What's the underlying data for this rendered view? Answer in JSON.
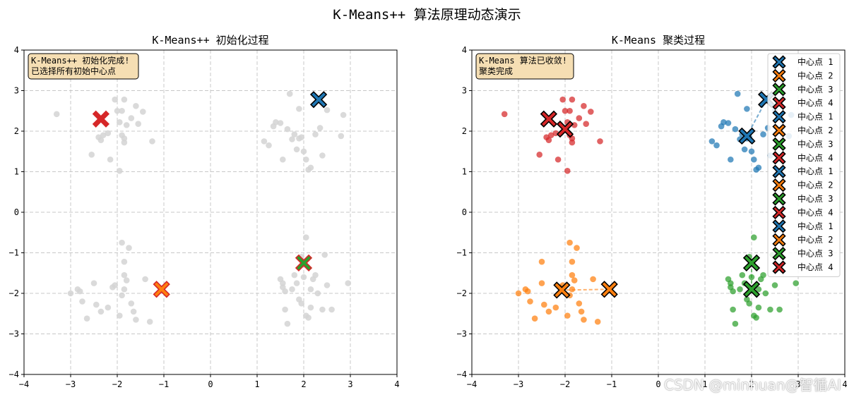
{
  "figure": {
    "title": "K-Means++ 算法原理动态演示"
  },
  "colors": {
    "c1": "#1f77b4",
    "c2": "#ff7f0e",
    "c3": "#2ca02c",
    "c4": "#d62728",
    "gray": "#d3d3d3",
    "grid": "#c8c8c8",
    "box_fill": "#f5deb3"
  },
  "watermark": "CSDN @minhuan@智循AI",
  "chart_data": [
    {
      "type": "scatter",
      "title": "K-Means++ 初始化过程",
      "xlim": [
        -4,
        4
      ],
      "ylim": [
        -4,
        4
      ],
      "xticks": [
        -4,
        -3,
        -2,
        -1,
        0,
        1,
        2,
        3,
        4
      ],
      "yticks": [
        -4,
        -3,
        -2,
        -1,
        0,
        1,
        2,
        3,
        4
      ],
      "grid": true,
      "annotation": [
        "K-Means++ 初始化完成!",
        "已选择所有初始中心点"
      ],
      "points_color": "gray",
      "points": [
        [
          -3.3,
          2.42
        ],
        [
          -2.55,
          1.42
        ],
        [
          -2.4,
          1.85
        ],
        [
          -2.3,
          1.9
        ],
        [
          -2.2,
          1.95
        ],
        [
          -2.15,
          1.3
        ],
        [
          -2.05,
          2.78
        ],
        [
          -2.0,
          2.5
        ],
        [
          -1.95,
          1.02
        ],
        [
          -1.9,
          2.5
        ],
        [
          -1.9,
          1.9
        ],
        [
          -1.85,
          2.78
        ],
        [
          -1.85,
          1.72
        ],
        [
          -1.8,
          2.15
        ],
        [
          -1.85,
          1.82
        ],
        [
          -1.7,
          2.32
        ],
        [
          -1.6,
          2.62
        ],
        [
          -1.55,
          2.18
        ],
        [
          -1.45,
          2.48
        ],
        [
          -1.25,
          1.75
        ],
        [
          -2.35,
          1.78
        ],
        [
          -1.95,
          2.22
        ],
        [
          1.15,
          1.75
        ],
        [
          1.25,
          1.65
        ],
        [
          1.35,
          2.12
        ],
        [
          1.4,
          2.22
        ],
        [
          1.5,
          2.2
        ],
        [
          1.55,
          1.3
        ],
        [
          1.65,
          2.05
        ],
        [
          1.7,
          2.92
        ],
        [
          1.75,
          1.8
        ],
        [
          1.8,
          1.92
        ],
        [
          1.85,
          1.55
        ],
        [
          1.9,
          2.55
        ],
        [
          1.9,
          1.82
        ],
        [
          1.95,
          1.85
        ],
        [
          2.0,
          1.5
        ],
        [
          2.05,
          1.3
        ],
        [
          2.1,
          1.05
        ],
        [
          2.15,
          1.1
        ],
        [
          2.25,
          1.92
        ],
        [
          2.35,
          2.08
        ],
        [
          2.4,
          1.4
        ],
        [
          2.8,
          1.88
        ],
        [
          2.85,
          2.4
        ],
        [
          2.5,
          2.52
        ],
        [
          -3.0,
          -2.0
        ],
        [
          -2.85,
          -1.9
        ],
        [
          -2.8,
          -1.95
        ],
        [
          -2.75,
          -2.2
        ],
        [
          -2.65,
          -2.62
        ],
        [
          -2.5,
          -1.75
        ],
        [
          -2.45,
          -2.28
        ],
        [
          -2.35,
          -2.45
        ],
        [
          -2.2,
          -2.35
        ],
        [
          -2.1,
          -1.85
        ],
        [
          -2.05,
          -1.8
        ],
        [
          -1.95,
          -2.55
        ],
        [
          -1.9,
          -2.05
        ],
        [
          -1.85,
          -1.22
        ],
        [
          -1.85,
          -1.55
        ],
        [
          -1.8,
          -1.68
        ],
        [
          -1.85,
          -1.9
        ],
        [
          -1.65,
          -2.45
        ],
        [
          -1.6,
          -2.65
        ],
        [
          -1.4,
          -1.65
        ],
        [
          -1.3,
          -2.7
        ],
        [
          -1.9,
          -0.75
        ],
        [
          -1.75,
          -0.88
        ],
        [
          -1.7,
          -2.25
        ],
        [
          1.5,
          -1.65
        ],
        [
          1.55,
          -1.75
        ],
        [
          1.6,
          -1.95
        ],
        [
          1.6,
          -2.4
        ],
        [
          1.65,
          -2.75
        ],
        [
          1.75,
          -1.9
        ],
        [
          1.8,
          -1.55
        ],
        [
          1.85,
          -1.75
        ],
        [
          1.9,
          -2.15
        ],
        [
          1.95,
          -2.25
        ],
        [
          1.95,
          -1.1
        ],
        [
          2.0,
          -1.6
        ],
        [
          2.05,
          -2.55
        ],
        [
          2.1,
          -2.6
        ],
        [
          2.15,
          -2.35
        ],
        [
          2.15,
          -1.9
        ],
        [
          2.2,
          -1.65
        ],
        [
          2.25,
          -1.55
        ],
        [
          2.3,
          -2.0
        ],
        [
          2.4,
          -2.4
        ],
        [
          2.45,
          -1.05
        ],
        [
          2.5,
          -1.8
        ],
        [
          2.6,
          -2.4
        ],
        [
          2.95,
          -1.75
        ],
        [
          1.55,
          -1.85
        ],
        [
          2.05,
          -0.62
        ]
      ],
      "centers": [
        {
          "label": "中心点 1",
          "color": "c1",
          "x": 2.32,
          "y": 2.78,
          "edge": "#000000"
        },
        {
          "label": "中心点 2",
          "color": "c2",
          "x": -1.05,
          "y": -1.9,
          "edge": "#d62728"
        },
        {
          "label": "中心点 3",
          "color": "c3",
          "x": 2.0,
          "y": -1.25,
          "edge": "#d62728"
        },
        {
          "label": "中心点 4",
          "color": "c4",
          "x": -2.35,
          "y": 2.3,
          "edge": "#d62728"
        }
      ]
    },
    {
      "type": "scatter",
      "title": "K-Means 聚类过程",
      "xlim": [
        -4,
        4
      ],
      "ylim": [
        -4,
        4
      ],
      "xticks": [
        -4,
        -3,
        -2,
        -1,
        0,
        1,
        2,
        3,
        4
      ],
      "yticks": [
        -4,
        -3,
        -2,
        -1,
        0,
        1,
        2,
        3,
        4
      ],
      "grid": true,
      "annotation": [
        "K-Means 算法已收敛!",
        "聚类完成"
      ],
      "clusters": [
        {
          "color": "c4",
          "points": [
            [
              -3.3,
              2.42
            ],
            [
              -2.55,
              1.42
            ],
            [
              -2.4,
              1.85
            ],
            [
              -2.3,
              1.9
            ],
            [
              -2.2,
              1.95
            ],
            [
              -2.15,
              1.3
            ],
            [
              -2.05,
              2.78
            ],
            [
              -2.0,
              2.5
            ],
            [
              -1.95,
              1.02
            ],
            [
              -1.9,
              2.5
            ],
            [
              -1.9,
              1.9
            ],
            [
              -1.85,
              2.78
            ],
            [
              -1.85,
              1.72
            ],
            [
              -1.8,
              2.15
            ],
            [
              -1.85,
              1.82
            ],
            [
              -1.7,
              2.32
            ],
            [
              -1.6,
              2.62
            ],
            [
              -1.55,
              2.18
            ],
            [
              -1.45,
              2.48
            ],
            [
              -1.25,
              1.75
            ],
            [
              -2.35,
              1.78
            ],
            [
              -1.95,
              2.22
            ]
          ]
        },
        {
          "color": "c1",
          "points": [
            [
              1.15,
              1.75
            ],
            [
              1.25,
              1.65
            ],
            [
              1.35,
              2.12
            ],
            [
              1.4,
              2.22
            ],
            [
              1.5,
              2.2
            ],
            [
              1.55,
              1.3
            ],
            [
              1.65,
              2.05
            ],
            [
              1.7,
              2.92
            ],
            [
              1.75,
              1.8
            ],
            [
              1.8,
              1.92
            ],
            [
              1.85,
              1.55
            ],
            [
              1.9,
              2.55
            ],
            [
              1.9,
              1.82
            ],
            [
              1.95,
              1.85
            ],
            [
              2.0,
              1.5
            ],
            [
              2.05,
              1.3
            ],
            [
              2.1,
              1.05
            ],
            [
              2.15,
              1.1
            ],
            [
              2.25,
              1.92
            ],
            [
              2.35,
              2.08
            ],
            [
              2.4,
              1.4
            ],
            [
              2.8,
              1.88
            ],
            [
              2.85,
              2.4
            ],
            [
              2.5,
              2.52
            ]
          ]
        },
        {
          "color": "c2",
          "points": [
            [
              -3.0,
              -2.0
            ],
            [
              -2.85,
              -1.9
            ],
            [
              -2.8,
              -1.95
            ],
            [
              -2.75,
              -2.2
            ],
            [
              -2.65,
              -2.62
            ],
            [
              -2.5,
              -1.75
            ],
            [
              -2.45,
              -2.28
            ],
            [
              -2.35,
              -2.45
            ],
            [
              -2.2,
              -2.35
            ],
            [
              -2.1,
              -1.85
            ],
            [
              -2.05,
              -1.8
            ],
            [
              -1.95,
              -2.55
            ],
            [
              -1.9,
              -2.05
            ],
            [
              -1.85,
              -1.22
            ],
            [
              -1.85,
              -1.55
            ],
            [
              -1.8,
              -1.68
            ],
            [
              -1.85,
              -1.9
            ],
            [
              -1.65,
              -2.45
            ],
            [
              -1.6,
              -2.65
            ],
            [
              -1.4,
              -1.65
            ],
            [
              -1.3,
              -2.7
            ],
            [
              -1.9,
              -0.75
            ],
            [
              -1.75,
              -0.88
            ],
            [
              -1.7,
              -2.25
            ],
            [
              -2.5,
              -1.22
            ]
          ]
        },
        {
          "color": "c3",
          "points": [
            [
              1.5,
              -1.65
            ],
            [
              1.55,
              -1.75
            ],
            [
              1.6,
              -1.95
            ],
            [
              1.6,
              -2.4
            ],
            [
              1.65,
              -2.75
            ],
            [
              1.75,
              -1.9
            ],
            [
              1.8,
              -1.55
            ],
            [
              1.85,
              -1.75
            ],
            [
              1.9,
              -2.15
            ],
            [
              1.95,
              -2.25
            ],
            [
              1.95,
              -1.1
            ],
            [
              2.0,
              -1.6
            ],
            [
              2.05,
              -2.55
            ],
            [
              2.1,
              -2.6
            ],
            [
              2.15,
              -2.35
            ],
            [
              2.15,
              -1.9
            ],
            [
              2.2,
              -1.65
            ],
            [
              2.25,
              -1.55
            ],
            [
              2.3,
              -2.0
            ],
            [
              2.4,
              -2.4
            ],
            [
              2.45,
              -1.05
            ],
            [
              2.5,
              -1.8
            ],
            [
              2.6,
              -2.4
            ],
            [
              2.95,
              -1.75
            ],
            [
              1.55,
              -1.85
            ],
            [
              2.05,
              -0.62
            ]
          ]
        }
      ],
      "center_paths": [
        {
          "color": "c1",
          "path": [
            [
              2.32,
              2.78
            ],
            [
              1.9,
              1.88
            ]
          ]
        },
        {
          "color": "c2",
          "path": [
            [
              -1.05,
              -1.9
            ],
            [
              -2.07,
              -1.92
            ]
          ]
        },
        {
          "color": "c3",
          "path": [
            [
              2.0,
              -1.25
            ],
            [
              2.0,
              -1.9
            ]
          ]
        },
        {
          "color": "c4",
          "path": [
            [
              -2.35,
              2.3
            ],
            [
              -2.0,
              2.05
            ]
          ]
        }
      ],
      "centers": [
        {
          "label": "中心点 1",
          "color": "c1",
          "x": 2.32,
          "y": 2.78
        },
        {
          "label": "中心点 2",
          "color": "c2",
          "x": -1.05,
          "y": -1.9
        },
        {
          "label": "中心点 3",
          "color": "c3",
          "x": 2.0,
          "y": -1.25
        },
        {
          "label": "中心点 4",
          "color": "c4",
          "x": -2.35,
          "y": 2.3
        },
        {
          "label": "中心点 1",
          "color": "c1",
          "x": 1.9,
          "y": 1.88
        },
        {
          "label": "中心点 2",
          "color": "c2",
          "x": -2.07,
          "y": -1.92
        },
        {
          "label": "中心点 3",
          "color": "c3",
          "x": 2.0,
          "y": -1.9
        },
        {
          "label": "中心点 4",
          "color": "c4",
          "x": -2.0,
          "y": 2.05
        }
      ],
      "legend": {
        "placement": "right",
        "entries": [
          {
            "label": "中心点 1",
            "color": "c1"
          },
          {
            "label": "中心点 2",
            "color": "c2"
          },
          {
            "label": "中心点 3",
            "color": "c3"
          },
          {
            "label": "中心点 4",
            "color": "c4"
          },
          {
            "label": "中心点 1",
            "color": "c1"
          },
          {
            "label": "中心点 2",
            "color": "c2"
          },
          {
            "label": "中心点 3",
            "color": "c3"
          },
          {
            "label": "中心点 4",
            "color": "c4"
          },
          {
            "label": "中心点 1",
            "color": "c1"
          },
          {
            "label": "中心点 2",
            "color": "c2"
          },
          {
            "label": "中心点 3",
            "color": "c3"
          },
          {
            "label": "中心点 4",
            "color": "c4"
          },
          {
            "label": "中心点 1",
            "color": "c1"
          },
          {
            "label": "中心点 2",
            "color": "c2"
          },
          {
            "label": "中心点 3",
            "color": "c3"
          },
          {
            "label": "中心点 4",
            "color": "c4"
          }
        ]
      }
    }
  ]
}
